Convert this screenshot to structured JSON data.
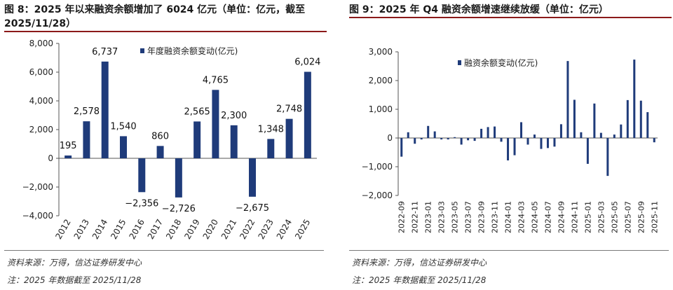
{
  "left": {
    "title_line1": "图 8：2025 年以来融资余额增加了 6024 亿元（单位：亿元，截至",
    "title_line2": "2025/11/28）",
    "source": "资料来源：万得，信达证券研发中心",
    "note": "注：2025 年数据截至 2025/11/28",
    "chart_data": {
      "type": "bar",
      "categories": [
        "2012",
        "2013",
        "2014",
        "2015",
        "2016",
        "2017",
        "2018",
        "2019",
        "2020",
        "2021",
        "2022",
        "2023",
        "2024",
        "2025"
      ],
      "series": [
        {
          "name": "年度融资余额变动(亿元)",
          "values": [
            195,
            2578,
            6737,
            1540,
            -2356,
            860,
            -2726,
            2565,
            4765,
            2300,
            -2675,
            1348,
            2748,
            6024
          ]
        }
      ],
      "data_labels": [
        "195",
        "2,578",
        "6,737",
        "1,540",
        "−2,356",
        "860",
        "−2,726",
        "2,565",
        "4,765",
        "2,300",
        "−2,675",
        "1,348",
        "2,748",
        "6,024"
      ],
      "yticks": [
        -4000,
        -2000,
        0,
        2000,
        4000,
        6000,
        8000
      ],
      "ytick_labels": [
        "−4,000",
        "−2,000",
        "0",
        "2,000",
        "4,000",
        "6,000",
        "8,000"
      ],
      "ylim": [
        -4000,
        8000
      ],
      "bar_color": "#1f3b7a"
    }
  },
  "right": {
    "title": "图 9：2025 年 Q4 融资余额增速继续放缓（单位：亿元）",
    "source": "资料来源：万得，信达证券研发中心",
    "note": "注：2025 年数据截至 2025/11/28",
    "chart_data": {
      "type": "bar",
      "categories": [
        "2022-09",
        "2022-10",
        "2022-11",
        "2022-12",
        "2023-01",
        "2023-02",
        "2023-03",
        "2023-04",
        "2023-05",
        "2023-06",
        "2023-07",
        "2023-08",
        "2023-09",
        "2023-10",
        "2023-11",
        "2023-12",
        "2024-01",
        "2024-02",
        "2024-03",
        "2024-04",
        "2024-05",
        "2024-06",
        "2024-07",
        "2024-08",
        "2024-09",
        "2024-10",
        "2024-11",
        "2024-12",
        "2025-01",
        "2025-02",
        "2025-03",
        "2025-04",
        "2025-05",
        "2025-06",
        "2025-07",
        "2025-08",
        "2025-09",
        "2025-10",
        "2025-11"
      ],
      "tick_labels": [
        "2022-09",
        "2022-11",
        "2023-01",
        "2023-03",
        "2023-05",
        "2023-07",
        "2023-09",
        "2023-11",
        "2024-01",
        "2024-03",
        "2024-05",
        "2024-07",
        "2024-09",
        "2024-11",
        "2025-01",
        "2025-03",
        "2025-05",
        "2025-07",
        "2025-09",
        "2025-11"
      ],
      "series": [
        {
          "name": "融资余额变动(亿元)",
          "values": [
            -650,
            200,
            -200,
            -50,
            420,
            230,
            -50,
            -50,
            30,
            -230,
            -80,
            -100,
            320,
            380,
            400,
            -130,
            -780,
            -600,
            550,
            -230,
            120,
            -380,
            -350,
            -300,
            480,
            2680,
            1330,
            200,
            -900,
            1200,
            180,
            -1320,
            120,
            470,
            1320,
            2730,
            1300,
            900,
            -150
          ]
        }
      ],
      "yticks": [
        -2000,
        -1000,
        0,
        1000,
        2000,
        3000
      ],
      "ytick_labels": [
        "−2,000",
        "−1,000",
        "0",
        "1,000",
        "2,000",
        "3,000"
      ],
      "ylim": [
        -2000,
        3000
      ],
      "bar_color": "#1f3b7a"
    }
  }
}
